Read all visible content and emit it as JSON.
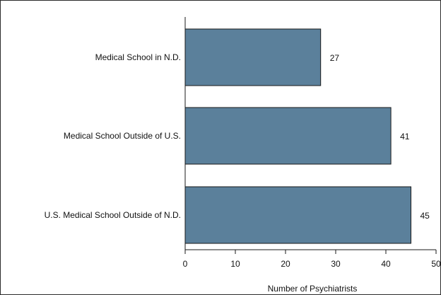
{
  "chart_data": {
    "type": "bar",
    "orientation": "horizontal",
    "categories": [
      "Medical School in N.D.",
      "Medical School Outside of U.S.",
      "U.S. Medical School Outside of N.D."
    ],
    "values": [
      27,
      41,
      45
    ],
    "xlabel": "Number of Psychiatrists",
    "xlim": [
      0,
      50
    ],
    "xticks": [
      0,
      10,
      20,
      30,
      40,
      50
    ],
    "bar_color": "#5b809b",
    "bar_edge_color": "#1a1a1a",
    "grid": false
  }
}
